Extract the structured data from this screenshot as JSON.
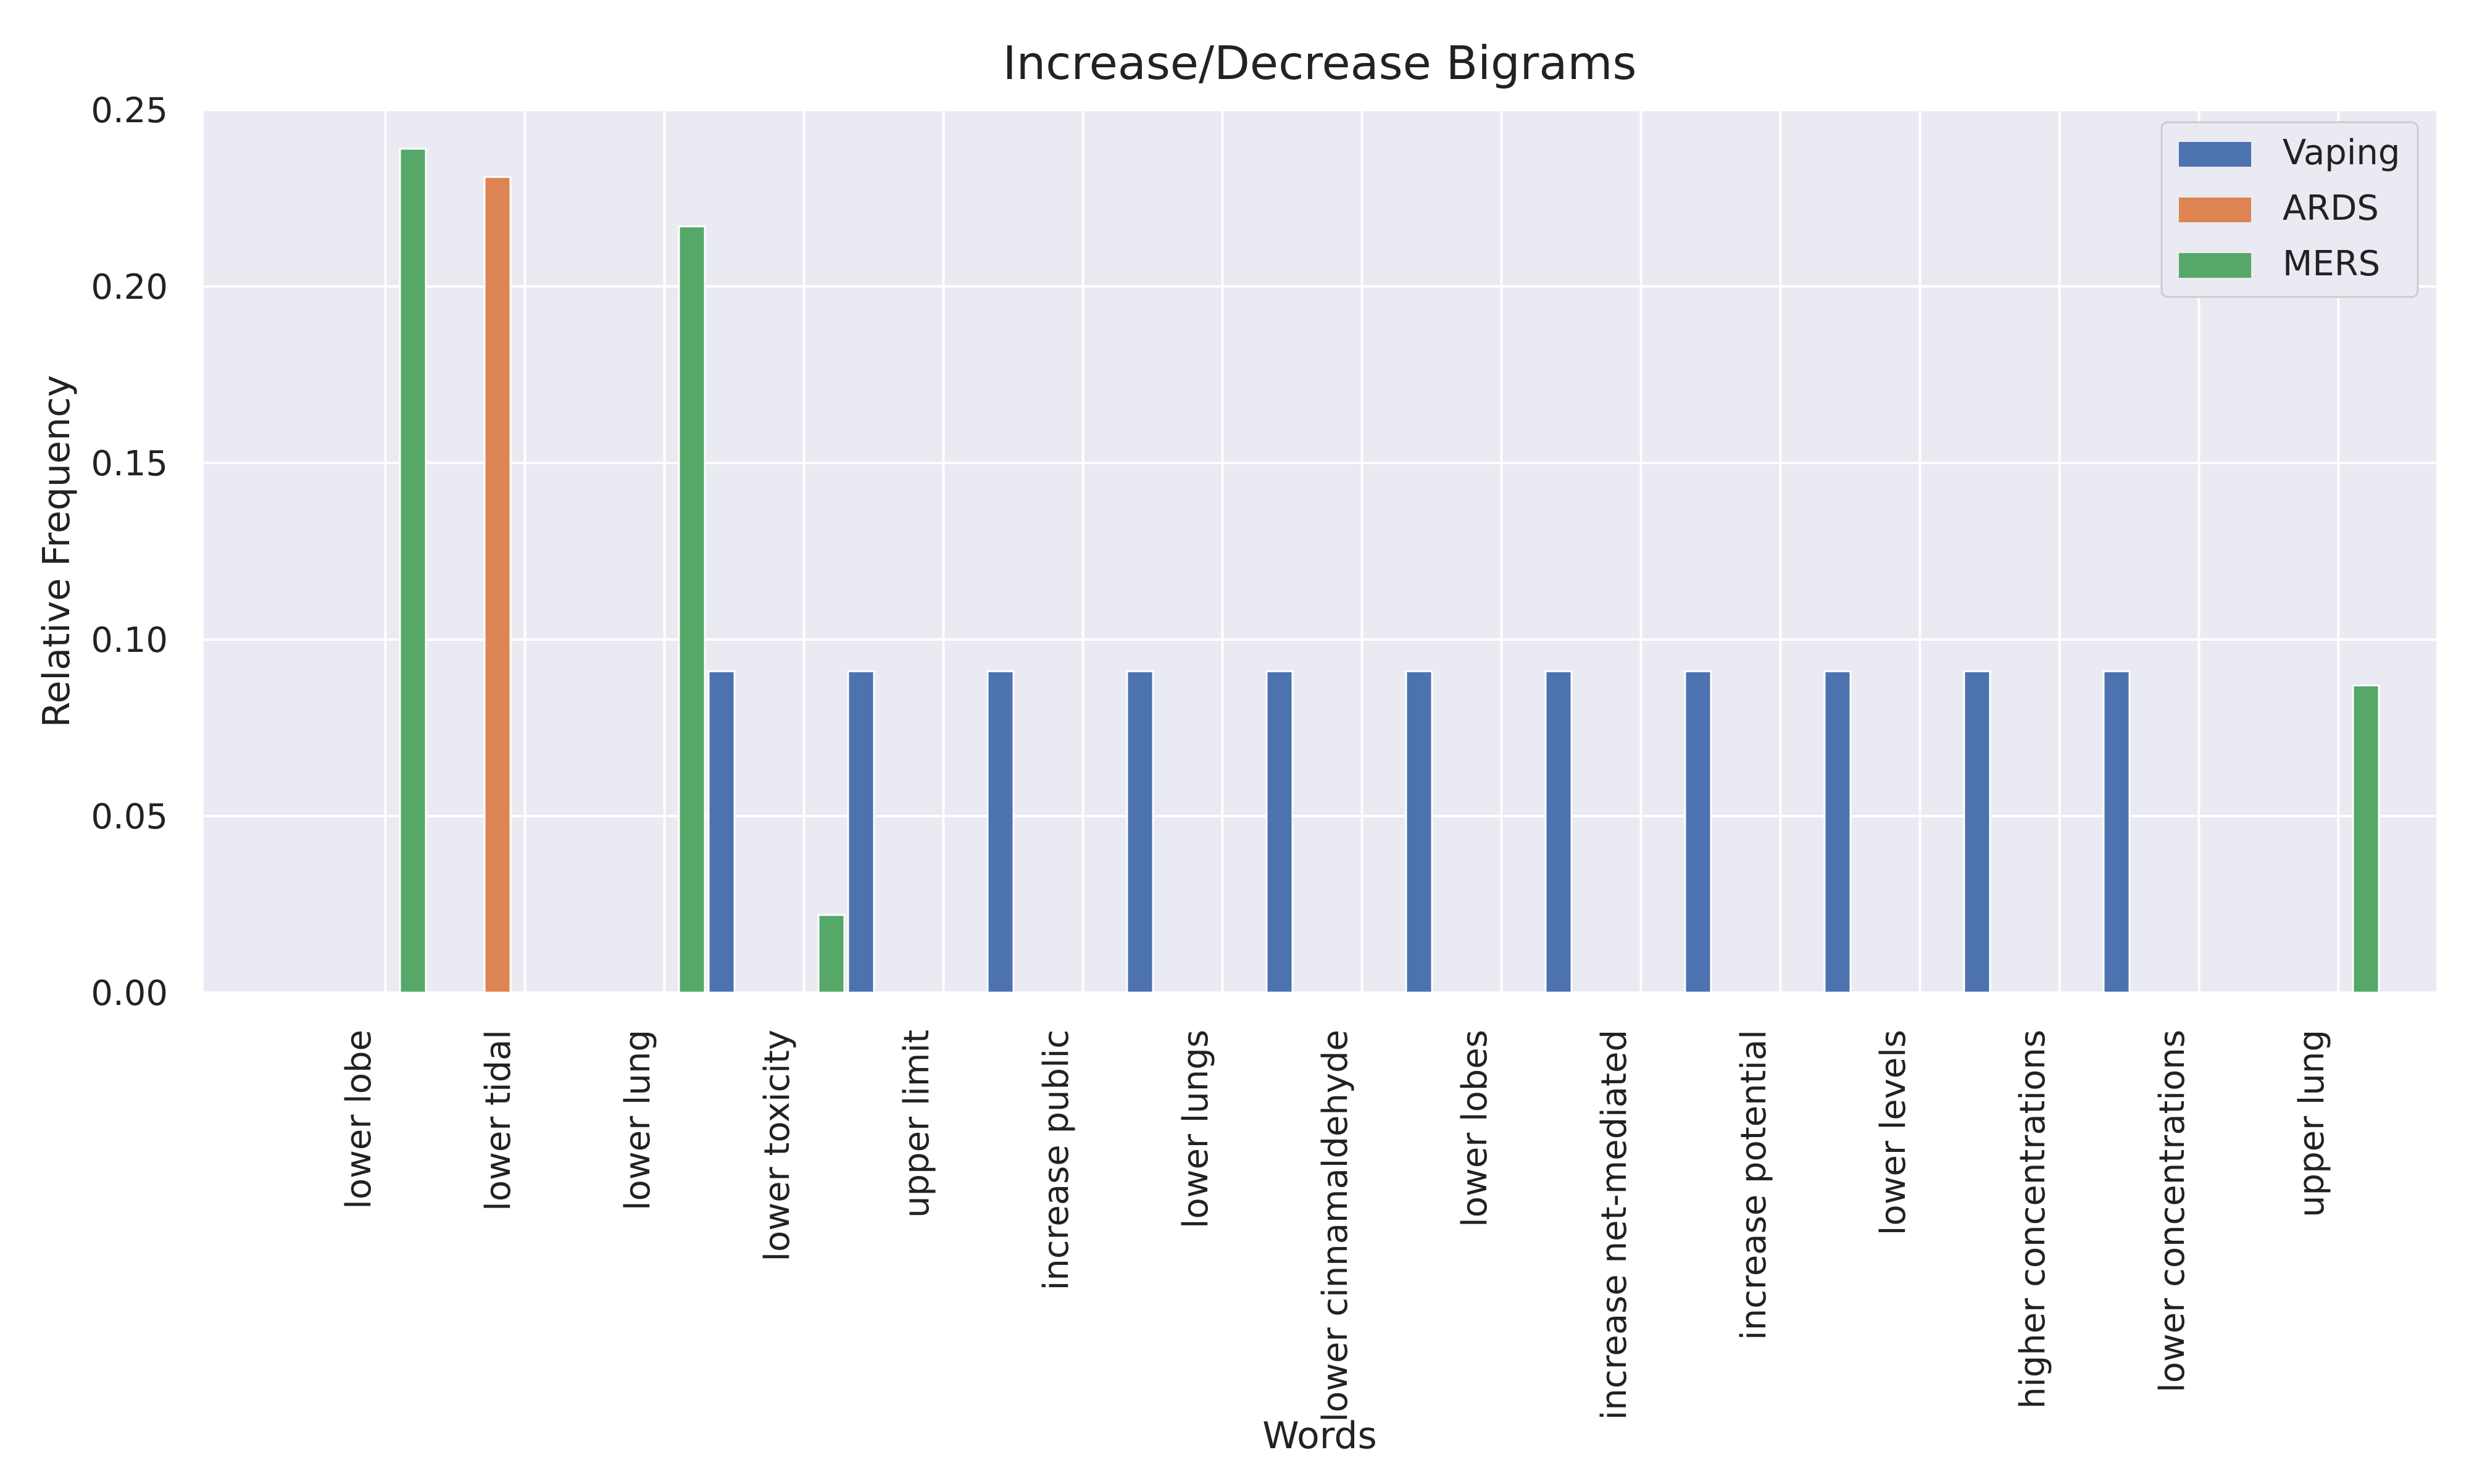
{
  "chart_data": {
    "type": "bar",
    "title": "Increase/Decrease Bigrams",
    "xlabel": "Words",
    "ylabel": "Relative Frequency",
    "ylim": [
      0,
      0.25
    ],
    "yticks": [
      "0.00",
      "0.05",
      "0.10",
      "0.15",
      "0.20",
      "0.25"
    ],
    "grid": true,
    "legend_position": "top-right",
    "categories": [
      "lower lobe",
      "lower tidal",
      "lower lung",
      "lower toxicity",
      "upper limit",
      "increase public",
      "lower lungs",
      "lower cinnamaldehyde",
      "lower lobes",
      "increase net-mediated",
      "increase potential",
      "lower levels",
      "higher concentrations",
      "lower concentrations",
      "upper lung"
    ],
    "series": [
      {
        "name": "Vaping",
        "color": "#4c72b0",
        "values": [
          0,
          0,
          0,
          0.091,
          0.091,
          0.091,
          0.091,
          0.091,
          0.091,
          0.091,
          0.091,
          0.091,
          0.091,
          0.091,
          0
        ]
      },
      {
        "name": "ARDS",
        "color": "#dd8452",
        "values": [
          0,
          0.231,
          0,
          0,
          0,
          0,
          0,
          0,
          0,
          0,
          0,
          0,
          0,
          0,
          0
        ]
      },
      {
        "name": "MERS",
        "color": "#55a868",
        "values": [
          0.239,
          0,
          0.217,
          0.022,
          0,
          0,
          0,
          0,
          0,
          0,
          0,
          0,
          0,
          0,
          0.087
        ]
      }
    ]
  }
}
